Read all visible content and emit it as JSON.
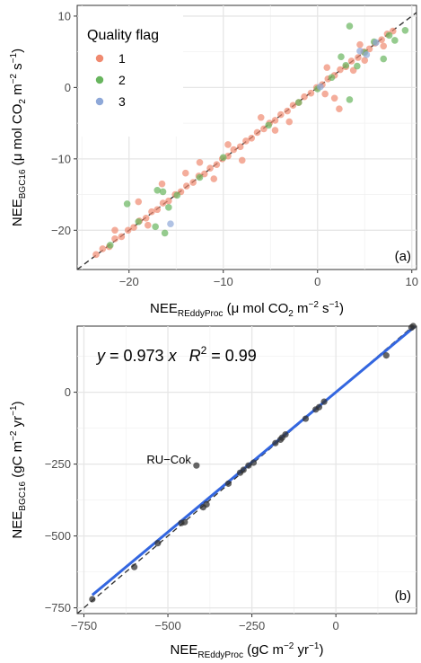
{
  "chart_data": [
    {
      "type": "scatter",
      "panel_label": "(a)",
      "xlabel": {
        "main": "NEE",
        "sub": "REddyProc",
        "unit_pre": " (μ mol CO",
        "unit_sub": "2",
        "unit_mid": " m",
        "unit_sup1": "−2",
        "unit_mid2": " s",
        "unit_sup2": "−1",
        "unit_post": ")"
      },
      "ylabel": {
        "main": "NEE",
        "sub": "BGC16",
        "unit_pre": " (μ mol CO",
        "unit_sub": "2",
        "unit_mid": " m",
        "unit_sup1": "−2",
        "unit_mid2": " s",
        "unit_sup2": "−1",
        "unit_post": ")"
      },
      "xlim": [
        -25.5,
        10.5
      ],
      "ylim": [
        -25.5,
        11.5
      ],
      "xticks": [
        -20,
        -10,
        0,
        10
      ],
      "xtick_labels": [
        "−20",
        "−10",
        "0",
        "10"
      ],
      "yticks": [
        -20,
        -10,
        0,
        10
      ],
      "ytick_labels": [
        "−20",
        "−10",
        "0",
        "10"
      ],
      "grid": true,
      "reference_line": "y = x (dashed)",
      "legend": {
        "title": "Quality flag",
        "placement": "top-left",
        "entries": [
          "1",
          "2",
          "3"
        ]
      },
      "series": [
        {
          "name": "1",
          "color": "#f08a70",
          "points": [
            [
              -23.5,
              -23.4
            ],
            [
              -22.8,
              -22.6
            ],
            [
              -22.1,
              -22.3
            ],
            [
              -21.5,
              -21.2
            ],
            [
              -20.8,
              -20.9
            ],
            [
              -20.1,
              -20.0
            ],
            [
              -19.5,
              -19.6
            ],
            [
              -18.9,
              -18.7
            ],
            [
              -18.2,
              -18.3
            ],
            [
              -17.6,
              -17.4
            ],
            [
              -17.0,
              -17.1
            ],
            [
              -16.4,
              -16.2
            ],
            [
              -15.8,
              -15.9
            ],
            [
              -15.1,
              -15.0
            ],
            [
              -14.5,
              -14.6
            ],
            [
              -13.9,
              -13.8
            ],
            [
              -13.2,
              -13.3
            ],
            [
              -12.6,
              -12.4
            ],
            [
              -12.0,
              -12.1
            ],
            [
              -11.4,
              -11.3
            ],
            [
              -10.7,
              -10.8
            ],
            [
              -10.1,
              -10.0
            ],
            [
              -9.5,
              -9.6
            ],
            [
              -8.9,
              -8.7
            ],
            [
              -8.2,
              -8.3
            ],
            [
              -7.6,
              -7.5
            ],
            [
              -7.0,
              -7.1
            ],
            [
              -6.4,
              -6.3
            ],
            [
              -5.7,
              -5.8
            ],
            [
              -5.1,
              -5.0
            ],
            [
              -4.5,
              -4.6
            ],
            [
              -3.9,
              -3.8
            ],
            [
              -3.2,
              -3.3
            ],
            [
              -2.6,
              -2.5
            ],
            [
              -2.0,
              -2.1
            ],
            [
              -1.4,
              -1.3
            ],
            [
              -0.7,
              -0.8
            ],
            [
              -0.1,
              0.0
            ],
            [
              0.5,
              0.4
            ],
            [
              1.1,
              1.2
            ],
            [
              1.8,
              1.7
            ],
            [
              2.4,
              2.5
            ],
            [
              3.0,
              2.9
            ],
            [
              3.6,
              3.7
            ],
            [
              4.3,
              4.2
            ],
            [
              4.9,
              5.0
            ],
            [
              5.5,
              5.4
            ],
            [
              6.1,
              6.2
            ],
            [
              6.8,
              6.7
            ],
            [
              7.4,
              7.5
            ],
            [
              8.0,
              7.9
            ],
            [
              -16.5,
              -13.5
            ],
            [
              -12.5,
              -10.5
            ],
            [
              -11.0,
              -12.8
            ],
            [
              -8.0,
              -10.2
            ],
            [
              1.8,
              -1.5
            ],
            [
              2.3,
              -3.0
            ],
            [
              3.8,
              2.4
            ],
            [
              5.0,
              3.8
            ],
            [
              -19.0,
              -16.0
            ],
            [
              -14.0,
              -12.0
            ],
            [
              -6.0,
              -4.2
            ],
            [
              -3.0,
              -4.8
            ],
            [
              1.0,
              2.8
            ],
            [
              -21.5,
              -20.0
            ],
            [
              -18.0,
              -19.3
            ],
            [
              -9.5,
              -8.0
            ],
            [
              -4.5,
              -6.0
            ],
            [
              0.8,
              -0.9
            ],
            [
              4.5,
              6.0
            ],
            [
              7.0,
              5.8
            ]
          ]
        },
        {
          "name": "2",
          "color": "#68b55e",
          "points": [
            [
              -20.2,
              -16.3
            ],
            [
              -17.0,
              -14.4
            ],
            [
              -16.4,
              -14.6
            ],
            [
              -15.8,
              -16.8
            ],
            [
              -16.2,
              -20.4
            ],
            [
              -17.2,
              -19.5
            ],
            [
              -14.9,
              -15.1
            ],
            [
              -10.0,
              -9.8
            ],
            [
              -5.2,
              -5.3
            ],
            [
              -2.0,
              -2.1
            ],
            [
              0.0,
              -0.2
            ],
            [
              1.5,
              1.4
            ],
            [
              3.0,
              3.1
            ],
            [
              3.4,
              -1.7
            ],
            [
              3.4,
              8.6
            ],
            [
              2.5,
              4.3
            ],
            [
              4.2,
              3.0
            ],
            [
              5.0,
              4.9
            ],
            [
              6.0,
              6.4
            ],
            [
              7.0,
              4.0
            ],
            [
              7.6,
              7.3
            ],
            [
              9.3,
              8.0
            ],
            [
              8.2,
              6.6
            ],
            [
              -22.0,
              -22.1
            ],
            [
              -19.0,
              -18.8
            ],
            [
              -12.5,
              -12.6
            ]
          ]
        },
        {
          "name": "3",
          "color": "#8ea8d8",
          "points": [
            [
              -15.6,
              -19.1
            ],
            [
              4.5,
              5.1
            ],
            [
              5.2,
              4.6
            ],
            [
              0.3,
              0.1
            ],
            [
              6.2,
              6.3
            ]
          ]
        }
      ]
    },
    {
      "type": "scatter",
      "panel_label": "(b)",
      "equation": {
        "y": "y",
        "eq_mid": " = 0.973 ",
        "x": "x",
        "r": "R",
        "r_sup": "2",
        "r_val": " = 0.99"
      },
      "xlabel": {
        "main": "NEE",
        "sub": "REddyProc",
        "unit_pre": " (gC m",
        "unit_sup1": "−2",
        "unit_mid": " yr",
        "unit_sup2": "−1",
        "unit_post": ")"
      },
      "ylabel": {
        "main": "NEE",
        "sub": "BGC16",
        "unit_pre": " (gC m",
        "unit_sup1": "−2",
        "unit_mid": " yr",
        "unit_sup2": "−1",
        "unit_post": ")"
      },
      "xlim": [
        -770,
        240
      ],
      "ylim": [
        -770,
        230
      ],
      "xticks": [
        -750,
        -500,
        -250,
        0
      ],
      "xtick_labels": [
        "−750",
        "−500",
        "−250",
        "0"
      ],
      "yticks": [
        -750,
        -500,
        -250,
        0
      ],
      "ytick_labels": [
        "−750",
        "−500",
        "−250",
        "0"
      ],
      "grid": true,
      "reference_line": "y = x (dashed)",
      "fit_line": {
        "slope": 0.973,
        "color": "#3366e0"
      },
      "annotation": {
        "text": "RU−Cok",
        "x": -415,
        "y": -255
      },
      "points": [
        [
          -725,
          -720
        ],
        [
          -600,
          -608
        ],
        [
          -530,
          -525
        ],
        [
          -460,
          -455
        ],
        [
          -450,
          -452
        ],
        [
          -395,
          -400
        ],
        [
          -385,
          -390
        ],
        [
          -320,
          -318
        ],
        [
          -285,
          -280
        ],
        [
          -275,
          -270
        ],
        [
          -260,
          -255
        ],
        [
          -245,
          -245
        ],
        [
          -180,
          -177
        ],
        [
          -165,
          -165
        ],
        [
          -160,
          -158
        ],
        [
          -150,
          -147
        ],
        [
          -90,
          -92
        ],
        [
          -60,
          -60
        ],
        [
          -50,
          -52
        ],
        [
          -35,
          -33
        ],
        [
          150,
          128
        ],
        [
          225,
          225
        ],
        [
          230,
          230
        ],
        [
          -415,
          -255
        ]
      ],
      "point_color": "#333333"
    }
  ]
}
